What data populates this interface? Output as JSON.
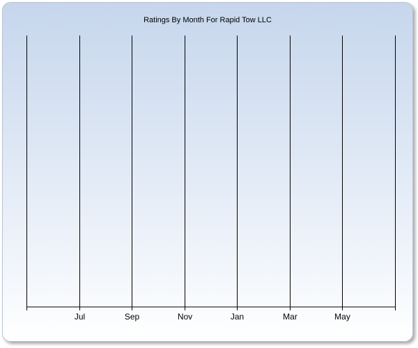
{
  "chart_data": {
    "type": "line",
    "title": "Ratings By Month For Rapid Tow LLC",
    "categories": [
      null,
      "Jul",
      "Sep",
      "Nov",
      "Jan",
      "Mar",
      "May",
      null
    ],
    "grid": true
  }
}
